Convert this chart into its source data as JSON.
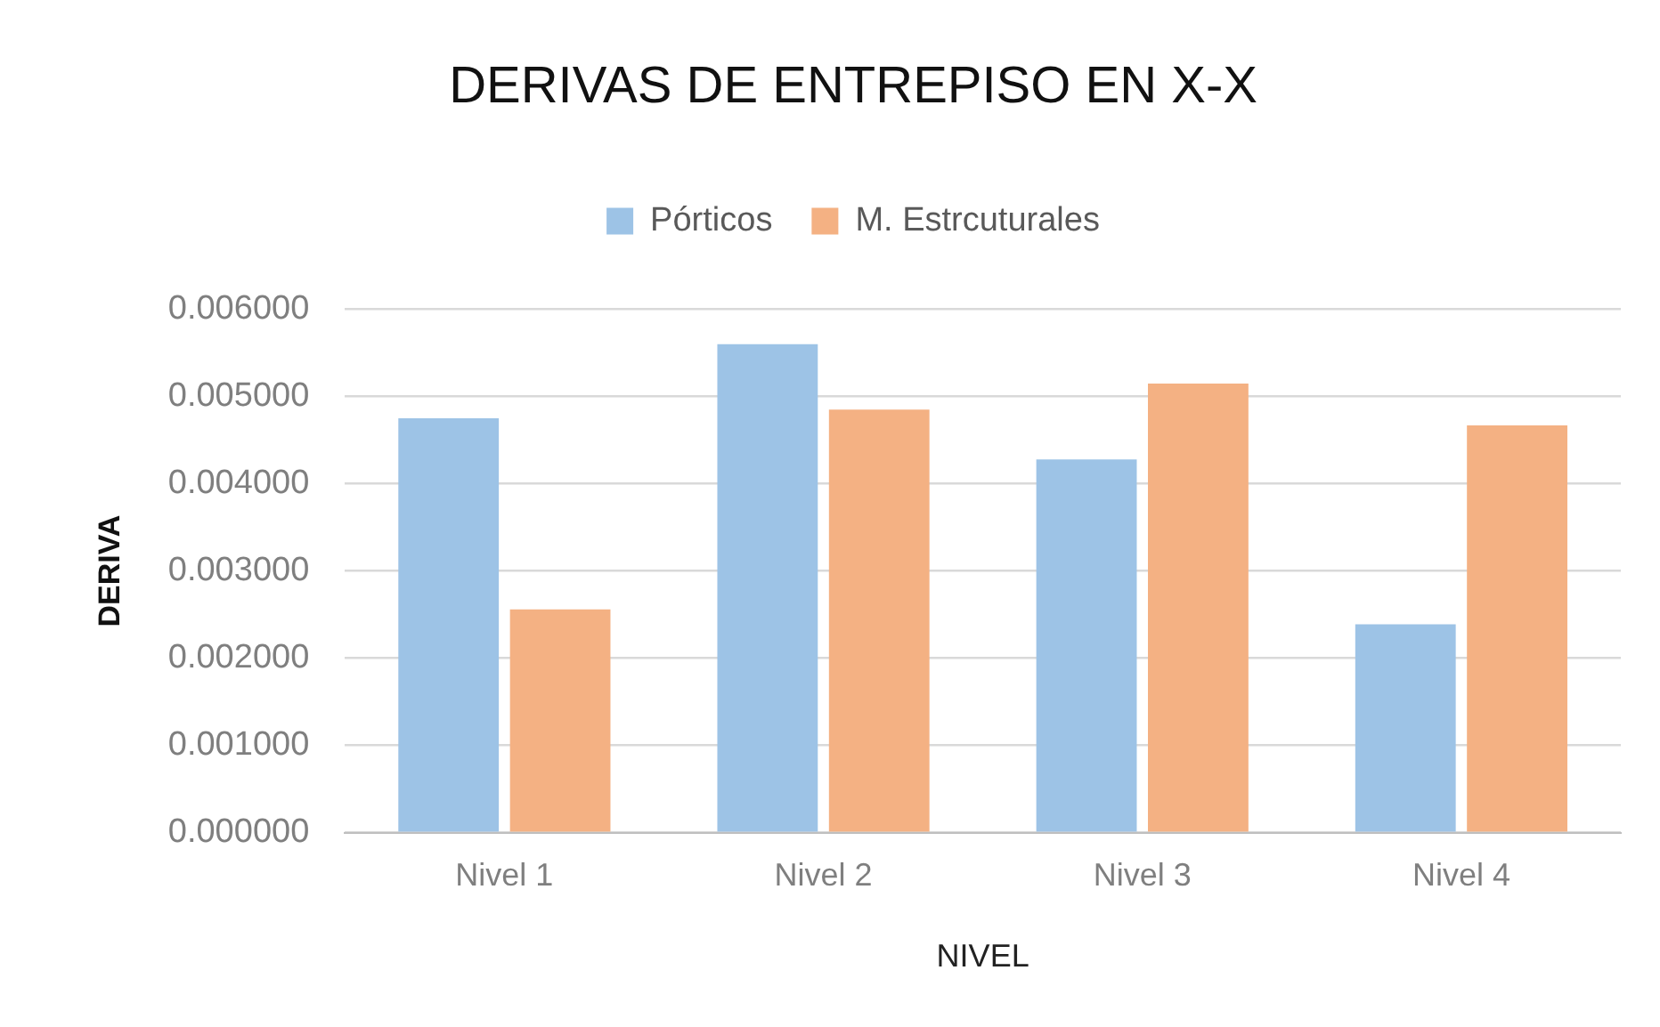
{
  "chart_data": {
    "type": "bar",
    "title": "DERIVAS DE ENTREPISO EN X-X",
    "xlabel": "NIVEL",
    "ylabel": "DERIVA",
    "categories": [
      "Nivel 1",
      "Nivel 2",
      "Nivel 3",
      "Nivel 4"
    ],
    "series": [
      {
        "name": "Pórticos",
        "color": "#9dc3e6",
        "values": [
          0.00475,
          0.0056,
          0.00428,
          0.00239
        ]
      },
      {
        "name": "M. Estrcuturales",
        "color": "#f4b183",
        "values": [
          0.00256,
          0.00485,
          0.00515,
          0.00467
        ]
      }
    ],
    "ylim": [
      0,
      0.006
    ],
    "yticks": [
      {
        "value": 0,
        "label": "0.000000"
      },
      {
        "value": 0.001,
        "label": "0.001000"
      },
      {
        "value": 0.002,
        "label": "0.002000"
      },
      {
        "value": 0.003,
        "label": "0.003000"
      },
      {
        "value": 0.004,
        "label": "0.004000"
      },
      {
        "value": 0.005,
        "label": "0.005000"
      },
      {
        "value": 0.006,
        "label": "0.006000"
      }
    ],
    "grid": "y",
    "legend": "top"
  }
}
